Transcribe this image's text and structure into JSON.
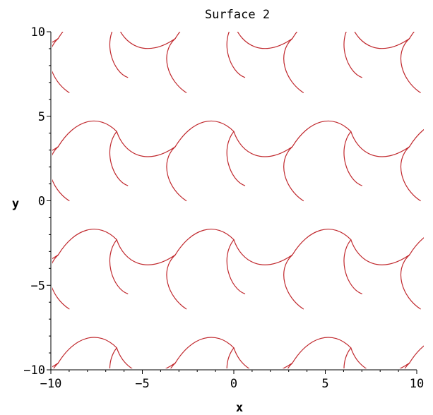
{
  "chart_data": {
    "type": "line",
    "title": "Surface 2",
    "xlabel": "x",
    "ylabel": "y",
    "xlim": [
      -10,
      10
    ],
    "ylim": [
      -10,
      10
    ],
    "xticks": [
      -10,
      -5,
      0,
      5,
      10
    ],
    "yticks": [
      -10,
      -5,
      0,
      5,
      10
    ],
    "xtick_labels": [
      "−10",
      "−5",
      "0",
      "5",
      "10"
    ],
    "ytick_labels": [
      "−10",
      "−5",
      "0",
      "5",
      "10"
    ],
    "grid": false,
    "series": [
      {
        "color": "#c0282d",
        "description_values": "implicit level-set curves forming a periodic interlocking tile pattern",
        "lattice_period": [
          6.4,
          6.4
        ],
        "tile_offset_rows": [
          [
            -1,
            -1
          ],
          [
            0,
            -1
          ],
          [
            1,
            -1
          ],
          [
            2,
            -1
          ]
        ]
      }
    ]
  }
}
